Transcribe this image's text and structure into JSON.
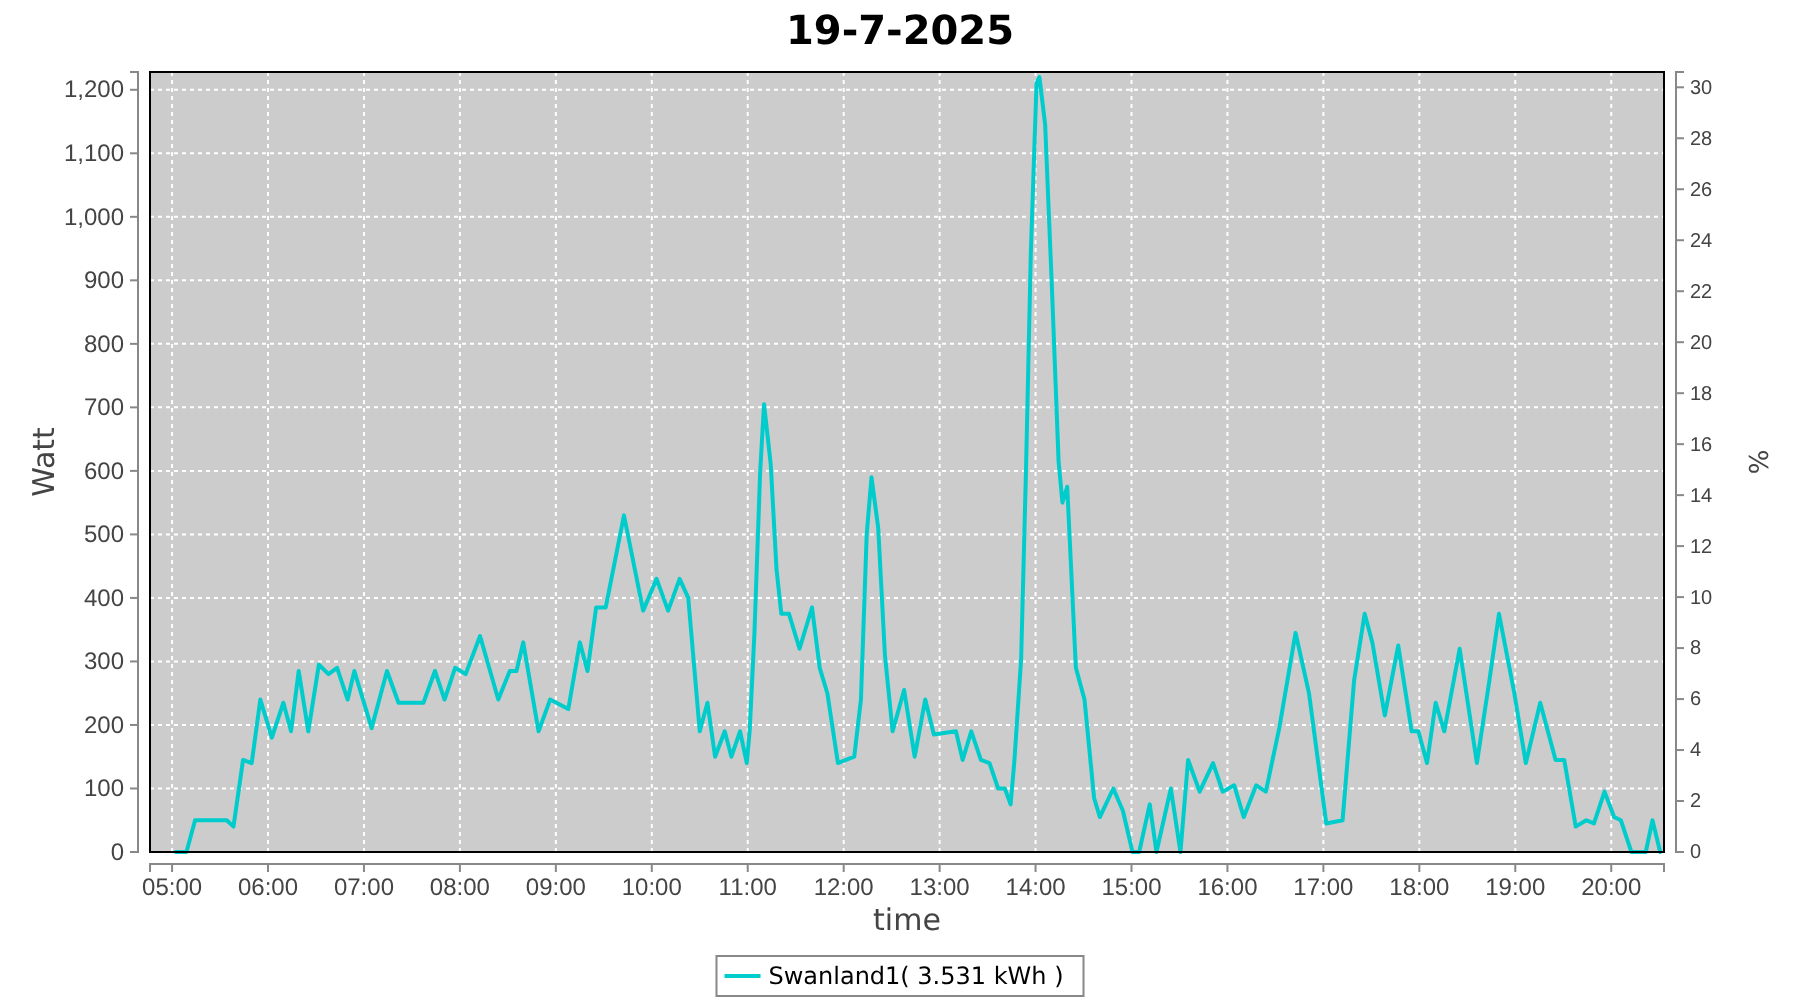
{
  "chart_data": {
    "type": "line",
    "title": "19-7-2025",
    "xlabel": "time",
    "ylabel": "Watt",
    "y2label": "%",
    "xlim": [
      4.77,
      20.55
    ],
    "xticks": [
      {
        "value": 5,
        "label": "05:00"
      },
      {
        "value": 6,
        "label": "06:00"
      },
      {
        "value": 7,
        "label": "07:00"
      },
      {
        "value": 8,
        "label": "08:00"
      },
      {
        "value": 9,
        "label": "09:00"
      },
      {
        "value": 10,
        "label": "10:00"
      },
      {
        "value": 11,
        "label": "11:00"
      },
      {
        "value": 12,
        "label": "12:00"
      },
      {
        "value": 13,
        "label": "13:00"
      },
      {
        "value": 14,
        "label": "14:00"
      },
      {
        "value": 15,
        "label": "15:00"
      },
      {
        "value": 16,
        "label": "16:00"
      },
      {
        "value": 17,
        "label": "17:00"
      },
      {
        "value": 18,
        "label": "18:00"
      },
      {
        "value": 19,
        "label": "19:00"
      },
      {
        "value": 20,
        "label": "20:00"
      }
    ],
    "ylim": [
      0,
      1228
    ],
    "yticks": [
      0,
      100,
      200,
      300,
      400,
      500,
      600,
      700,
      800,
      900,
      {
        "value": 1000,
        "label": "1,000"
      },
      {
        "value": 1100,
        "label": "1,100"
      },
      {
        "value": 1200,
        "label": "1,200"
      }
    ],
    "y2lim": [
      0,
      30.6
    ],
    "y2ticks": [
      0,
      2,
      4,
      6,
      8,
      10,
      12,
      14,
      16,
      18,
      20,
      22,
      24,
      26,
      28,
      30
    ],
    "grid": true,
    "legend": "bottom",
    "marker": "none",
    "line_style": "solid",
    "series": [
      {
        "name": "Swanland1( 3.531 kWh )",
        "color": "#00cccc",
        "x": [
          5.04,
          5.15,
          5.24,
          5.57,
          5.64,
          5.74,
          5.83,
          5.92,
          6.04,
          6.16,
          6.24,
          6.32,
          6.42,
          6.53,
          6.63,
          6.72,
          6.83,
          6.9,
          7.08,
          7.24,
          7.36,
          7.62,
          7.74,
          7.84,
          7.95,
          8.06,
          8.21,
          8.4,
          8.52,
          8.59,
          8.66,
          8.82,
          8.94,
          9.13,
          9.25,
          9.33,
          9.42,
          9.52,
          9.71,
          9.91,
          10.05,
          10.17,
          10.29,
          10.38,
          10.5,
          10.58,
          10.66,
          10.76,
          10.83,
          10.92,
          10.99,
          11.02,
          11.07,
          11.13,
          11.17,
          11.24,
          11.3,
          11.35,
          11.43,
          11.54,
          11.67,
          11.75,
          11.83,
          11.94,
          12.11,
          12.18,
          12.24,
          12.29,
          12.36,
          12.43,
          12.51,
          12.63,
          12.74,
          12.85,
          12.94,
          13.17,
          13.24,
          13.33,
          13.43,
          13.52,
          13.61,
          13.68,
          13.74,
          13.78,
          13.85,
          13.9,
          13.95,
          14.01,
          14.04,
          14.1,
          14.17,
          14.24,
          14.28,
          14.33,
          14.42,
          14.51,
          14.61,
          14.67,
          14.81,
          14.91,
          15.01,
          15.08,
          15.19,
          15.26,
          15.41,
          15.51,
          15.59,
          15.71,
          15.85,
          15.95,
          16.07,
          16.17,
          16.3,
          16.4,
          16.54,
          16.71,
          16.85,
          17.03,
          17.2,
          17.32,
          17.43,
          17.51,
          17.64,
          17.78,
          17.92,
          17.99,
          18.08,
          18.17,
          18.26,
          18.42,
          18.6,
          18.73,
          18.83,
          18.99,
          19.11,
          19.26,
          19.42,
          19.51,
          19.63,
          19.74,
          19.82,
          19.93,
          20.03,
          20.1,
          20.21,
          20.36,
          20.43,
          20.51
        ],
        "values": [
          0,
          0,
          50,
          50,
          40,
          145,
          140,
          240,
          180,
          235,
          190,
          285,
          190,
          295,
          280,
          290,
          240,
          285,
          195,
          285,
          235,
          235,
          285,
          240,
          290,
          280,
          340,
          240,
          285,
          285,
          330,
          190,
          240,
          225,
          330,
          285,
          385,
          385,
          530,
          380,
          430,
          380,
          430,
          400,
          190,
          235,
          150,
          190,
          150,
          190,
          140,
          190,
          345,
          600,
          705,
          610,
          445,
          375,
          375,
          320,
          385,
          290,
          250,
          140,
          150,
          240,
          500,
          590,
          510,
          310,
          190,
          255,
          150,
          240,
          185,
          190,
          145,
          190,
          145,
          140,
          100,
          100,
          75,
          145,
          305,
          600,
          940,
          1210,
          1220,
          1145,
          890,
          615,
          550,
          575,
          290,
          240,
          85,
          55,
          100,
          65,
          0,
          0,
          75,
          0,
          100,
          0,
          145,
          95,
          140,
          95,
          105,
          55,
          105,
          95,
          195,
          345,
          250,
          45,
          50,
          270,
          375,
          330,
          215,
          325,
          190,
          190,
          140,
          235,
          190,
          320,
          140,
          270,
          375,
          250,
          140,
          235,
          145,
          145,
          40,
          50,
          45,
          95,
          55,
          50,
          0,
          0,
          50,
          0
        ]
      }
    ]
  }
}
